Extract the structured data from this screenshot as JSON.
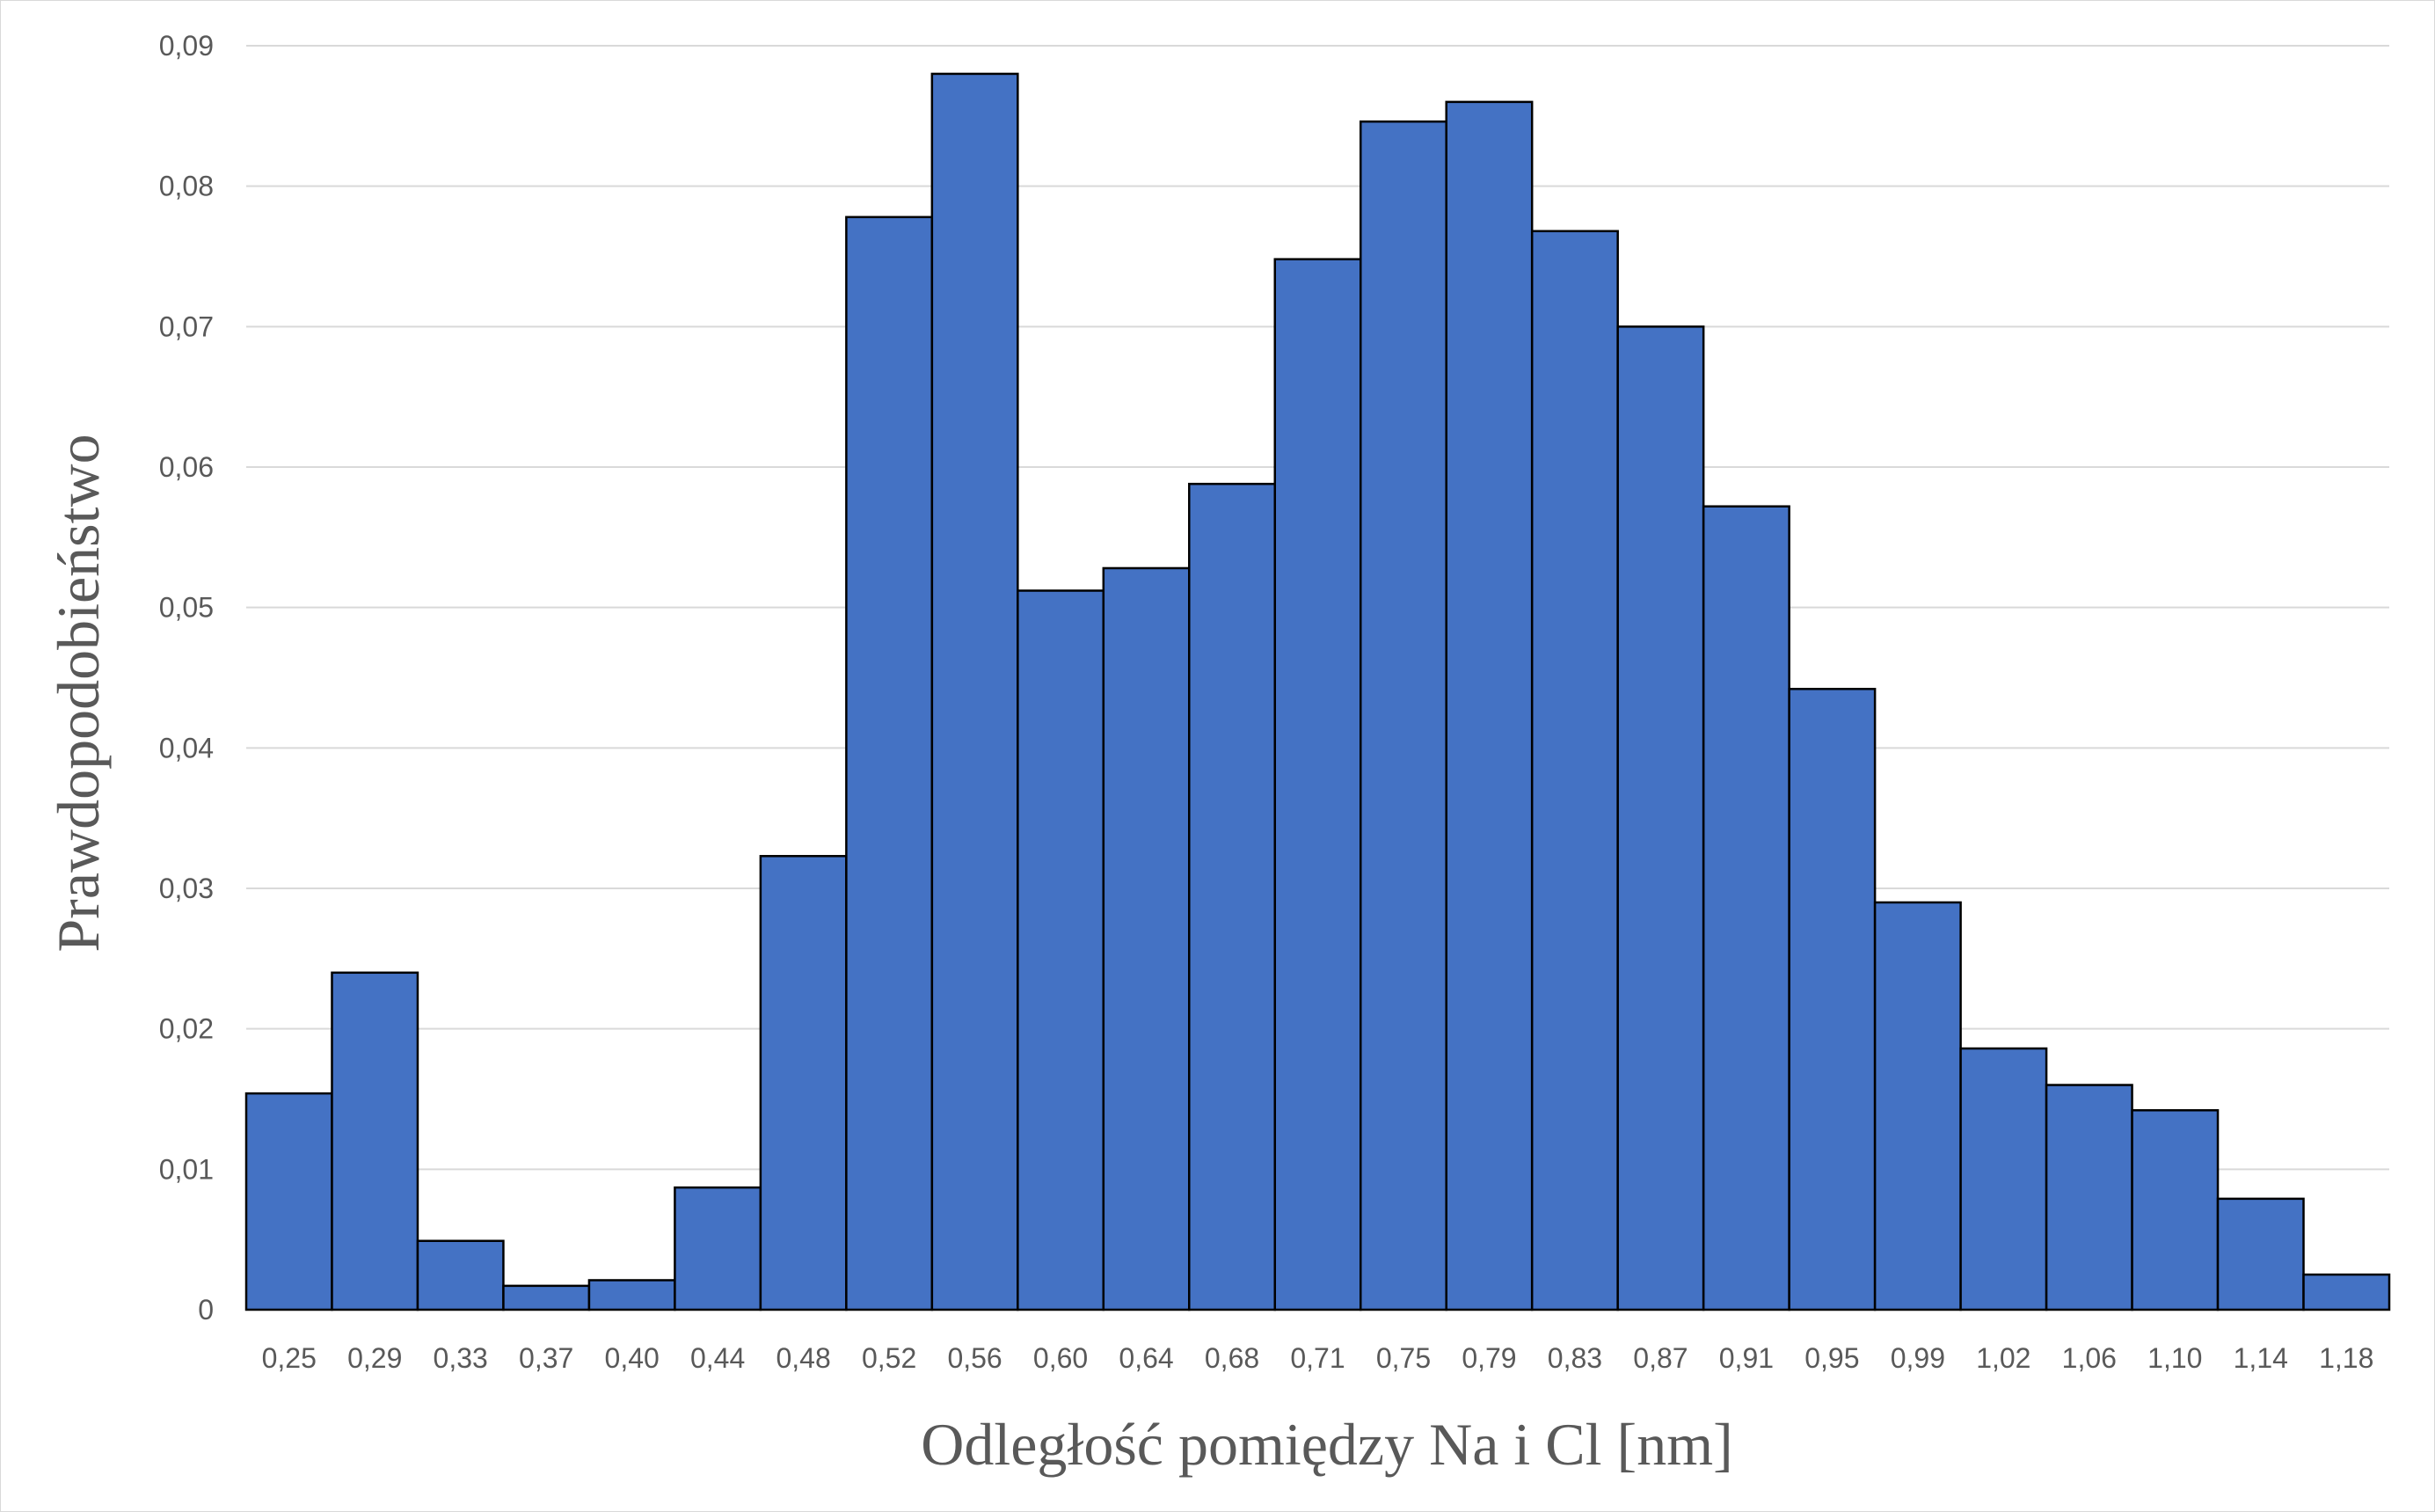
{
  "chart_data": {
    "type": "bar",
    "title": "",
    "xlabel": "Odległość pomiędzy Na i Cl [nm]",
    "ylabel": "Prawdopodobieństwo",
    "ylim": [
      0,
      0.09
    ],
    "yticks": [
      "0",
      "0,01",
      "0,02",
      "0,03",
      "0,04",
      "0,05",
      "0,06",
      "0,07",
      "0,08",
      "0,09"
    ],
    "categories": [
      "0,25",
      "0,29",
      "0,33",
      "0,37",
      "0,40",
      "0,44",
      "0,48",
      "0,52",
      "0,56",
      "0,60",
      "0,64",
      "0,68",
      "0,71",
      "0,75",
      "0,79",
      "0,83",
      "0,87",
      "0,91",
      "0,95",
      "0,99",
      "1,02",
      "1,06",
      "1,10",
      "1,14",
      "1,18"
    ],
    "values": [
      0.0154,
      0.024,
      0.0049,
      0.0017,
      0.0021,
      0.0087,
      0.0323,
      0.0778,
      0.088,
      0.0512,
      0.0528,
      0.0588,
      0.0748,
      0.0846,
      0.086,
      0.0768,
      0.07,
      0.0572,
      0.0442,
      0.029,
      0.0186,
      0.016,
      0.0142,
      0.0079,
      0.0025
    ],
    "bar_color": "#4472C4",
    "bar_edge_color": "#000000",
    "grid": true,
    "legend": false
  }
}
